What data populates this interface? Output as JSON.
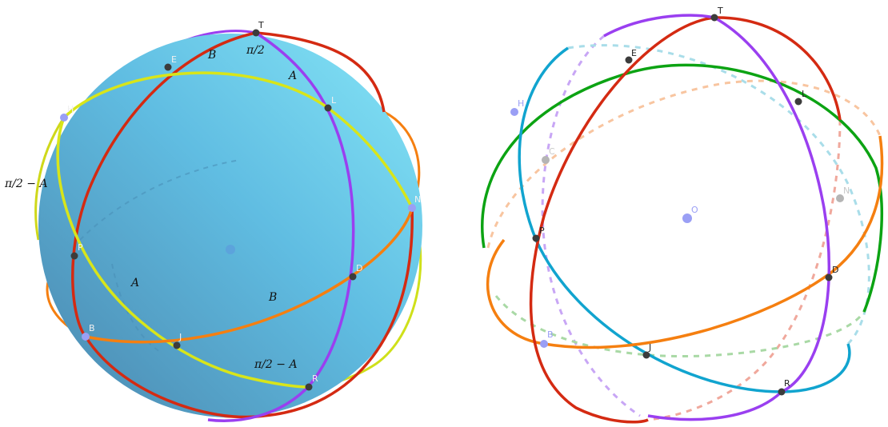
{
  "left_view": {
    "points": {
      "T": "T",
      "E": "E",
      "L": "L",
      "H": "H",
      "P": "P",
      "N": "N",
      "D": "D",
      "J": "J",
      "B": "B",
      "R": "R"
    },
    "labels": {
      "top_arc": "π/2",
      "arc_B_top": "B",
      "arc_A_top": "A",
      "left_angle": "π/2 − A",
      "arc_A_lower": "A",
      "arc_B_lower": "B",
      "bottom_angle": "π/2 − A"
    }
  },
  "right_view": {
    "points": {
      "T": "T",
      "E": "E",
      "L": "L",
      "H": "H",
      "C": "C",
      "N": "N",
      "O": "O",
      "P": "P",
      "D": "D",
      "B": "B",
      "J": "J",
      "R": "R"
    }
  },
  "colors": {
    "sphere_light": "#7fdcf0",
    "sphere_mid": "#5cb8dc",
    "sphere_dark": "#4a8db5",
    "red_circle": "#d42a12",
    "purple_circle": "#9a3ff0",
    "yellow_circle": "#d8e51a",
    "orange_circle": "#f57f10",
    "green_circle": "#0ca313",
    "cyan_circle": "#11a4cf",
    "dark_point": "#3c3c3c",
    "light_point": "#9a9ff5"
  }
}
